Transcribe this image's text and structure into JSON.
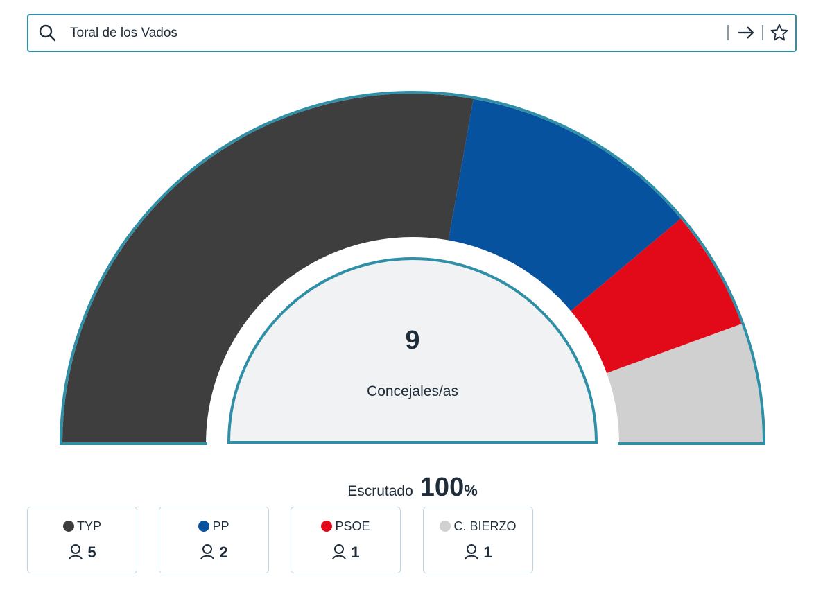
{
  "search": {
    "value": "Toral de los Vados",
    "icon": "search-icon",
    "actions": [
      "arrow-right-icon",
      "star-icon"
    ]
  },
  "summary": {
    "total_seats": "9",
    "total_label": "Concejales/as",
    "scrutiny_label": "Escrutado",
    "scrutiny_value": "100",
    "scrutiny_unit": "%"
  },
  "chart_data": {
    "type": "pie",
    "shape": "semicircle-hemicycle",
    "categories": [
      "TYP",
      "PP",
      "PSOE",
      "C. BIERZO"
    ],
    "values": [
      5,
      2,
      1,
      1
    ],
    "colors": [
      "#3e3e3e",
      "#06529e",
      "#e20a19",
      "#d0d0d0"
    ],
    "total": 9
  },
  "legend": [
    {
      "name": "TYP",
      "seats": "5",
      "color": "#3e3e3e"
    },
    {
      "name": "PP",
      "seats": "2",
      "color": "#06529e"
    },
    {
      "name": "PSOE",
      "seats": "1",
      "color": "#e20a19"
    },
    {
      "name": "C. BIERZO",
      "seats": "1",
      "color": "#d0d0d0"
    }
  ]
}
